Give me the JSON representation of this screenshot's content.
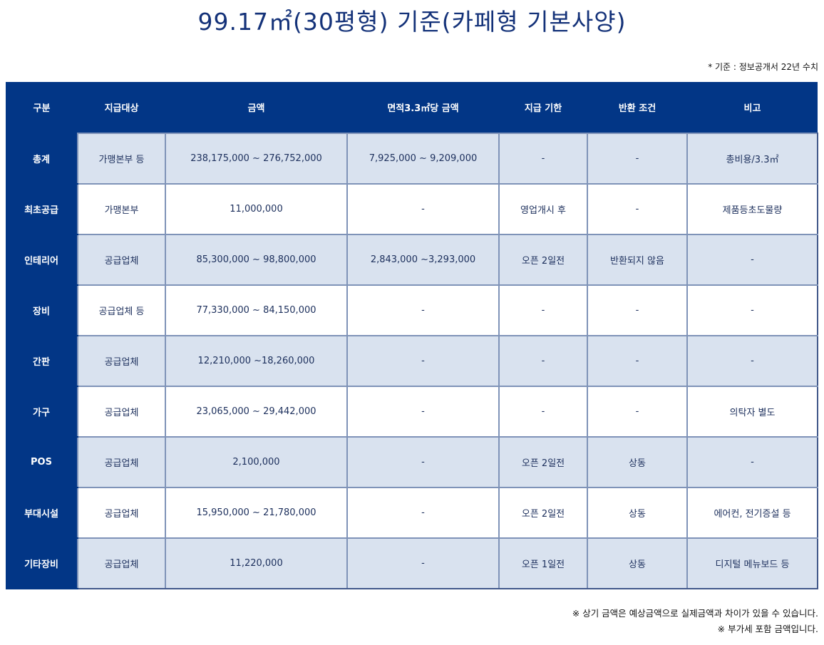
{
  "title": "99.17㎡(30평형) 기준(카페형 기본사양)",
  "source_note": "* 기준 : 정보공개서 22년 수치",
  "table": {
    "headers": [
      "구분",
      "지급대상",
      "금액",
      "면적3.3㎡당 금액",
      "지급 기한",
      "반환 조건",
      "비고"
    ],
    "rows": [
      {
        "category": "총계",
        "recipient": "가맹본부 등",
        "amount": "238,175,000 ~ 276,752,000",
        "per_area": "7,925,000 ~ 9,209,000",
        "deadline": "-",
        "refund": "-",
        "note": "총비용/3.3㎡"
      },
      {
        "category": "최초공급",
        "recipient": "가맹본부",
        "amount": "11,000,000",
        "per_area": "-",
        "deadline": "영업개시 후",
        "refund": "-",
        "note": "제품등초도물량"
      },
      {
        "category": "인테리어",
        "recipient": "공급업체",
        "amount": "85,300,000 ~ 98,800,000",
        "per_area": "2,843,000 ~3,293,000",
        "deadline": "오픈 2일전",
        "refund": "반환되지 않음",
        "note": "-"
      },
      {
        "category": "장비",
        "recipient": "공급업체 등",
        "amount": "77,330,000 ~ 84,150,000",
        "per_area": "-",
        "deadline": "-",
        "refund": "-",
        "note": "-"
      },
      {
        "category": "간판",
        "recipient": "공급업체",
        "amount": "12,210,000 ~18,260,000",
        "per_area": "-",
        "deadline": "-",
        "refund": "-",
        "note": "-"
      },
      {
        "category": "가구",
        "recipient": "공급업체",
        "amount": "23,065,000 ~ 29,442,000",
        "per_area": "-",
        "deadline": "-",
        "refund": "-",
        "note": "의탁자 별도"
      },
      {
        "category": "POS",
        "recipient": "공급업체",
        "amount": "2,100,000",
        "per_area": "-",
        "deadline": "오픈 2일전",
        "refund": "상동",
        "note": "-"
      },
      {
        "category": "부대시설",
        "recipient": "공급업체",
        "amount": "15,950,000 ~ 21,780,000",
        "per_area": "-",
        "deadline": "오픈 2일전",
        "refund": "상동",
        "note": "에어컨, 전기증설 등"
      },
      {
        "category": "기타장비",
        "recipient": "공급업체",
        "amount": "11,220,000",
        "per_area": "-",
        "deadline": "오픈 1일전",
        "refund": "상동",
        "note": "디지털 메뉴보드 등"
      }
    ]
  },
  "footnotes": [
    "※ 상기 금액은 예상금액으로 실제금액과 차이가 있을 수 있습니다.",
    "※ 부가세 포함 금액입니다."
  ]
}
